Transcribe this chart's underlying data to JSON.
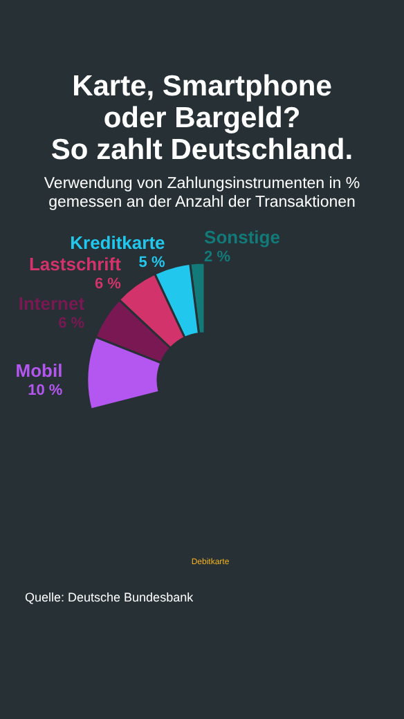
{
  "chart_data": {
    "type": "donut",
    "title": [
      "Karte, Smartphone",
      "oder Bargeld?",
      "So zahlt Deutschland."
    ],
    "subtitle": [
      "Verwendung von Zahlungsinstrumenten in %",
      "gemessen an der Anzahl der Transaktionen"
    ],
    "categories": [
      "Sonstige",
      "Kreditkarte",
      "Lastschrift",
      "Internet",
      "Mobil"
    ],
    "values": [
      2,
      5,
      6,
      6,
      10
    ],
    "colors": [
      "#127a78",
      "#22c7ee",
      "#d1336a",
      "#7a1854",
      "#b457f0"
    ],
    "value_labels": [
      "2 %",
      "5 %",
      "6 %",
      "6 %",
      "10 %"
    ],
    "legend": false,
    "annotations": [
      "Debitkarte",
      "Quelle: Deutsche Bundesbank"
    ]
  }
}
